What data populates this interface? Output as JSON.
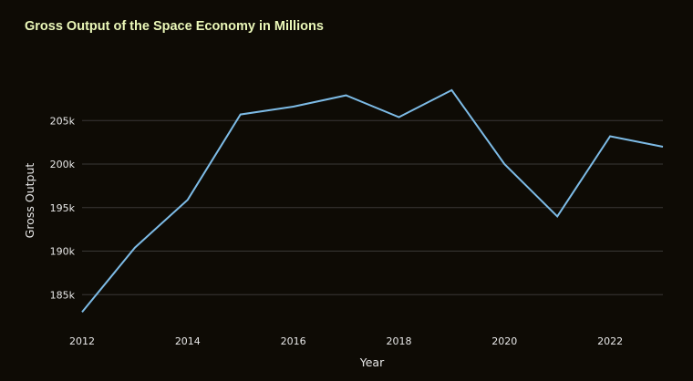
{
  "chart_data": {
    "type": "line",
    "title": "Gross Output of the Space Economy in Millions",
    "xlabel": "Year",
    "ylabel": "Gross Output",
    "x": [
      2012,
      2013,
      2014,
      2015,
      2016,
      2017,
      2018,
      2019,
      2020,
      2021,
      2022,
      2023
    ],
    "series": [
      {
        "values": [
          183000,
          190400,
          195900,
          205700,
          206600,
          207900,
          205400,
          208500,
          200000,
          194000,
          203200,
          202000
        ]
      }
    ],
    "xticks": [
      2012,
      2014,
      2016,
      2018,
      2020,
      2022
    ],
    "yticks": [
      185000,
      190000,
      195000,
      200000,
      205000
    ],
    "ytick_labels": [
      "185k",
      "190k",
      "195k",
      "200k",
      "205k"
    ],
    "xlim": [
      2012,
      2023
    ],
    "grid": "horizontal",
    "colors": {
      "line": "#7dbbe6",
      "background": "#0e0b05",
      "title": "#eaf7b8",
      "grid": "#3a3836"
    }
  }
}
